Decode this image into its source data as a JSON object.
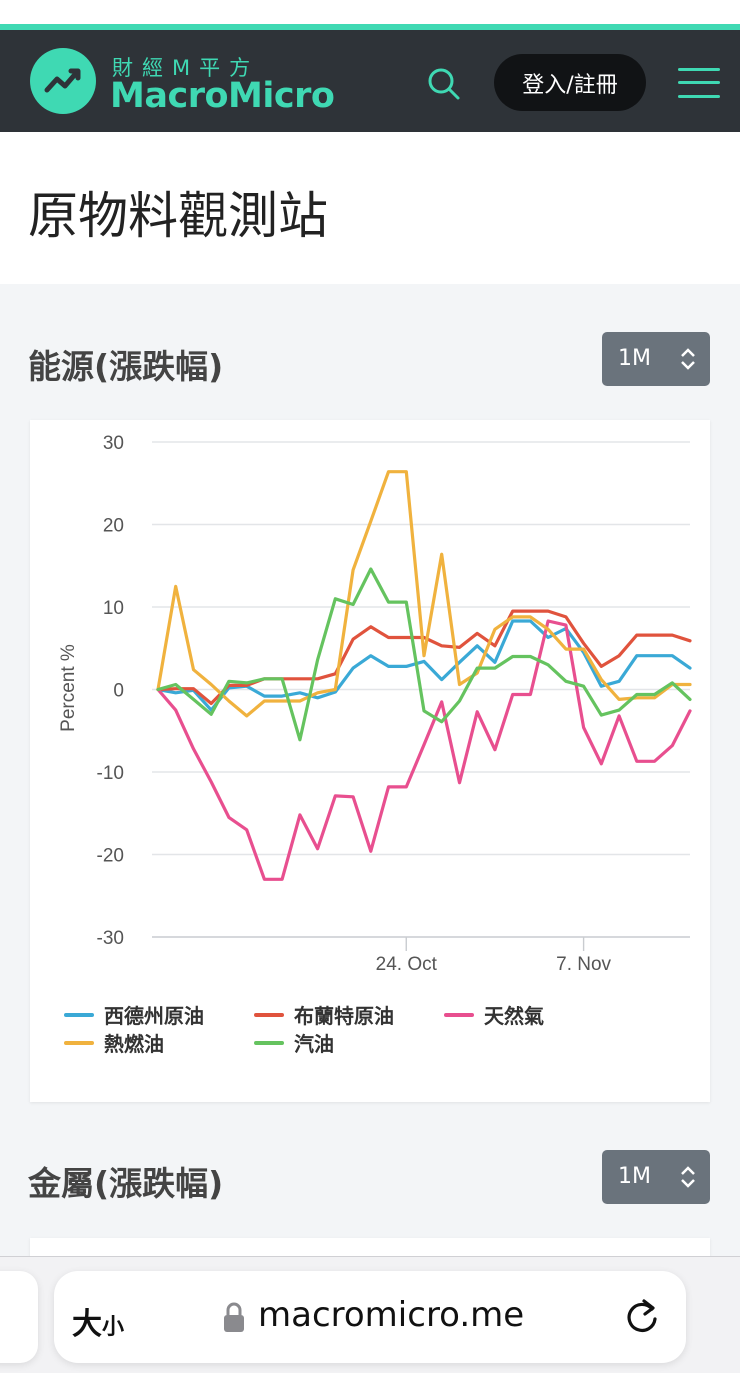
{
  "header": {
    "brand_cn": "財經M平方",
    "brand_en": "MacroMicro",
    "login_label": "登入/註冊",
    "accent": "#3fd9b3"
  },
  "page_title": "原物料觀測站",
  "sections": [
    {
      "title": "能源(漲跌幅)",
      "period": "1M"
    },
    {
      "title": "金屬(漲跌幅)",
      "period": "1M"
    }
  ],
  "browser": {
    "text_size_label": "大",
    "text_size_small": "小",
    "url": "macromicro.me"
  },
  "chart_data": {
    "type": "line",
    "title": "",
    "ylabel": "Percent %",
    "ylim": [
      -30,
      30
    ],
    "yticks": [
      30,
      20,
      10,
      0,
      -10,
      -20,
      -30
    ],
    "xticks": [
      {
        "label": "24. Oct",
        "index": 14
      },
      {
        "label": "7. Nov",
        "index": 24
      }
    ],
    "legend_position": "bottom",
    "series": [
      {
        "name": "西德州原油",
        "color": "#3aa9d6",
        "values": [
          0,
          -0.4,
          -0.1,
          -2.5,
          0.2,
          0.4,
          -0.8,
          -0.8,
          -0.4,
          -1.0,
          -0.3,
          2.6,
          4.1,
          2.8,
          2.8,
          3.4,
          1.2,
          3.3,
          5.3,
          3.3,
          8.3,
          8.3,
          6.3,
          7.4,
          4.5,
          0.4,
          1.0,
          4.1,
          4.1,
          4.1,
          2.6
        ]
      },
      {
        "name": "布蘭特原油",
        "color": "#e0533d",
        "values": [
          0,
          0.1,
          0.1,
          -1.7,
          0.5,
          0.5,
          1.3,
          1.3,
          1.3,
          1.3,
          1.9,
          6.1,
          7.6,
          6.3,
          6.3,
          6.3,
          5.3,
          5.1,
          6.8,
          5.3,
          9.5,
          9.5,
          9.5,
          8.8,
          5.6,
          2.8,
          4.1,
          6.6,
          6.6,
          6.6,
          5.9
        ]
      },
      {
        "name": "天然氣",
        "color": "#e84f8f",
        "values": [
          0,
          -2.5,
          -7.2,
          -11.2,
          -15.5,
          -17.0,
          -23.0,
          -23.0,
          -15.2,
          -19.3,
          -12.9,
          -13.0,
          -19.6,
          -11.8,
          -11.8,
          -6.7,
          -1.5,
          -11.3,
          -2.7,
          -7.3,
          -0.6,
          -0.6,
          8.3,
          7.8,
          -4.6,
          -9.0,
          -3.2,
          -8.7,
          -8.7,
          -6.8,
          -2.6
        ]
      },
      {
        "name": "熱燃油",
        "color": "#f0b23e",
        "values": [
          0,
          12.5,
          2.4,
          0.6,
          -1.4,
          -3.2,
          -1.4,
          -1.4,
          -1.4,
          -0.4,
          0.0,
          14.5,
          20.4,
          26.4,
          26.4,
          4.1,
          16.4,
          0.6,
          2.0,
          7.3,
          8.8,
          8.8,
          7.3,
          4.9,
          4.9,
          1.2,
          -1.2,
          -1.0,
          -1.0,
          0.6,
          0.6
        ]
      },
      {
        "name": "汽油",
        "color": "#65c35f",
        "values": [
          0,
          0.6,
          -1.2,
          -3.0,
          1.0,
          0.8,
          1.3,
          1.3,
          -6.1,
          3.6,
          11.0,
          10.3,
          14.6,
          10.6,
          10.6,
          -2.6,
          -3.9,
          -1.4,
          2.6,
          2.6,
          4.0,
          4.0,
          3.0,
          1.0,
          0.4,
          -3.1,
          -2.5,
          -0.6,
          -0.6,
          0.8,
          -1.2
        ]
      }
    ]
  }
}
